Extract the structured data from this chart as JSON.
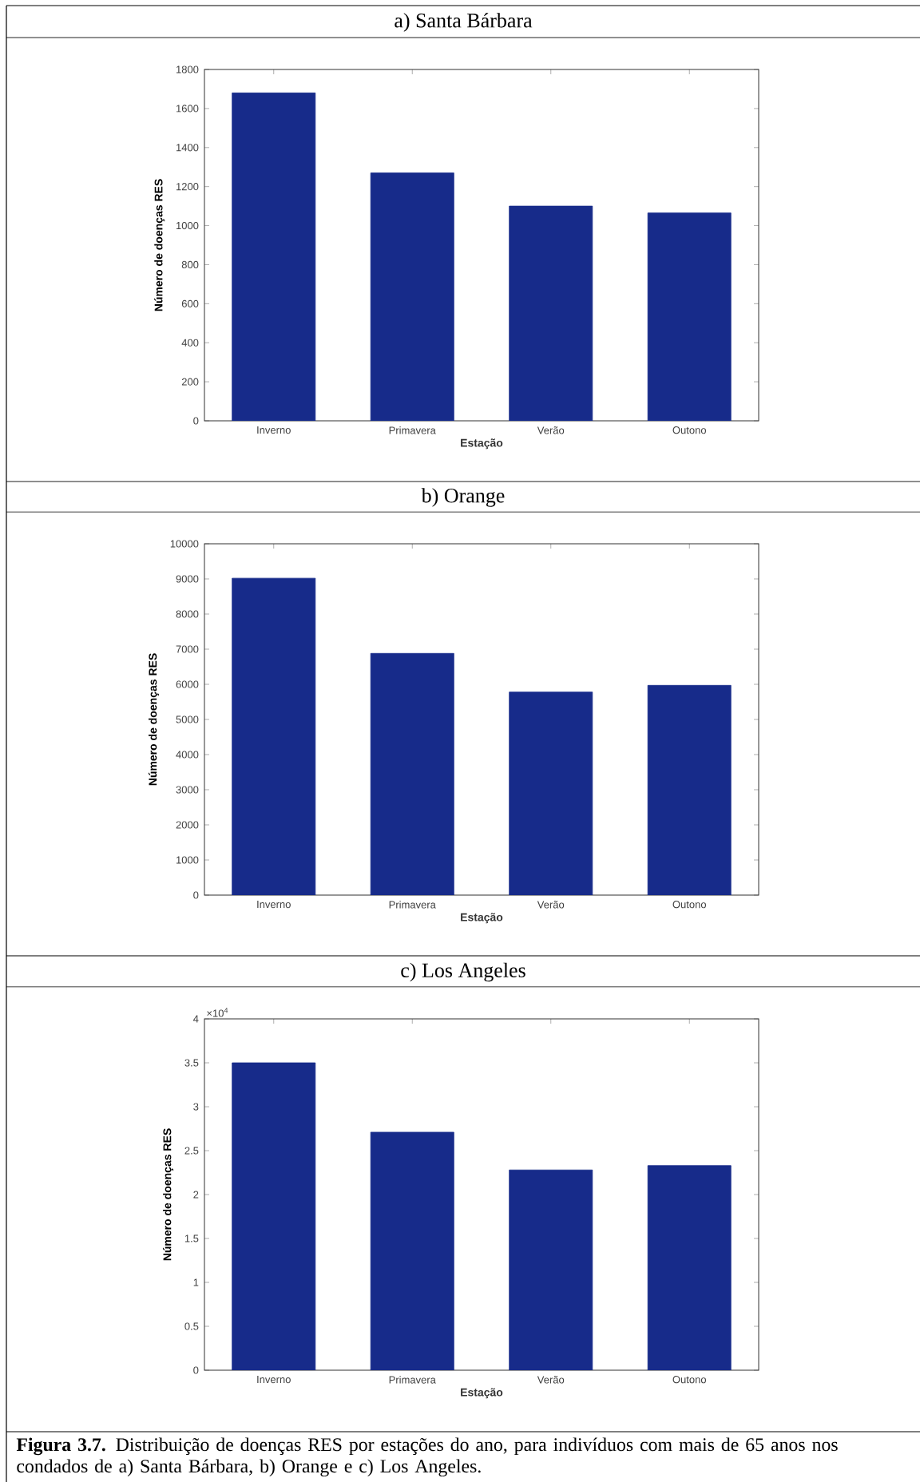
{
  "chart_data": [
    {
      "type": "bar",
      "title": "a) Santa Bárbara",
      "xlabel": "Estação",
      "ylabel": "Número de doenças RES",
      "categories": [
        "Inverno",
        "Primavera",
        "Verão",
        "Outono"
      ],
      "values": [
        1680,
        1270,
        1100,
        1065
      ],
      "color": "#172b8a",
      "ylim": [
        0,
        1800
      ],
      "yticks": [
        0,
        200,
        400,
        600,
        800,
        1000,
        1200,
        1400,
        1600,
        1800
      ]
    },
    {
      "type": "bar",
      "title": "b) Orange",
      "xlabel": "Estação",
      "ylabel": "Número de doenças RES",
      "categories": [
        "Inverno",
        "Primavera",
        "Verão",
        "Outono"
      ],
      "values": [
        9020,
        6880,
        5780,
        5970
      ],
      "color": "#172b8a",
      "ylim": [
        0,
        10000
      ],
      "yticks": [
        0,
        1000,
        2000,
        3000,
        4000,
        5000,
        6000,
        7000,
        8000,
        9000,
        10000
      ]
    },
    {
      "type": "bar",
      "title": "c) Los Angeles",
      "xlabel": "Estação",
      "ylabel": "Número de doenças RES",
      "categories": [
        "Inverno",
        "Primavera",
        "Verão",
        "Outono"
      ],
      "values": [
        3.5,
        2.71,
        2.28,
        2.33
      ],
      "color": "#172b8a",
      "ylim": [
        0,
        4
      ],
      "yticks": [
        0,
        0.5,
        1,
        1.5,
        2,
        2.5,
        3,
        3.5,
        4
      ],
      "annotations": [
        "×10$^{4}$",
        "**Figura 3.7.** Distribuição de doenças RES por estações do ano, para indivíduos com mais de 65 anos nos condados de a) Santa Bárbara, b) Orange e c) Los Angeles."
      ]
    }
  ]
}
